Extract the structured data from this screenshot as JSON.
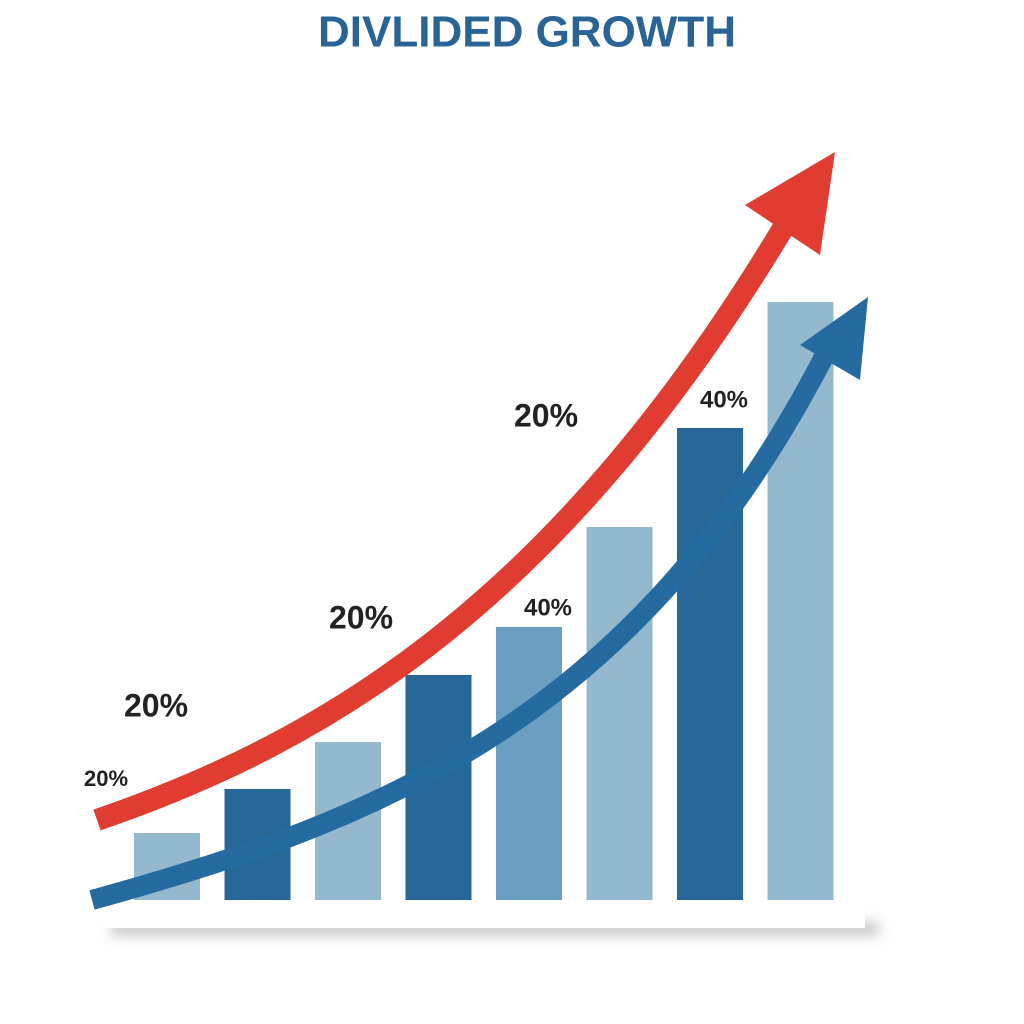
{
  "chart_data": {
    "type": "bar",
    "title": "DIVLIDED GROWTH",
    "values": [
      67,
      111,
      158,
      225,
      273,
      373,
      472,
      598
    ],
    "colors": [
      "#94b8cd",
      "#276899",
      "#94b8cd",
      "#276899",
      "#6a9fc2",
      "#94b8cd",
      "#276899",
      "#94b8cd"
    ],
    "ylim": [
      0,
      700
    ],
    "annotations": [
      "20%",
      "20%",
      "20%",
      "20%",
      "40%",
      "40%"
    ]
  }
}
